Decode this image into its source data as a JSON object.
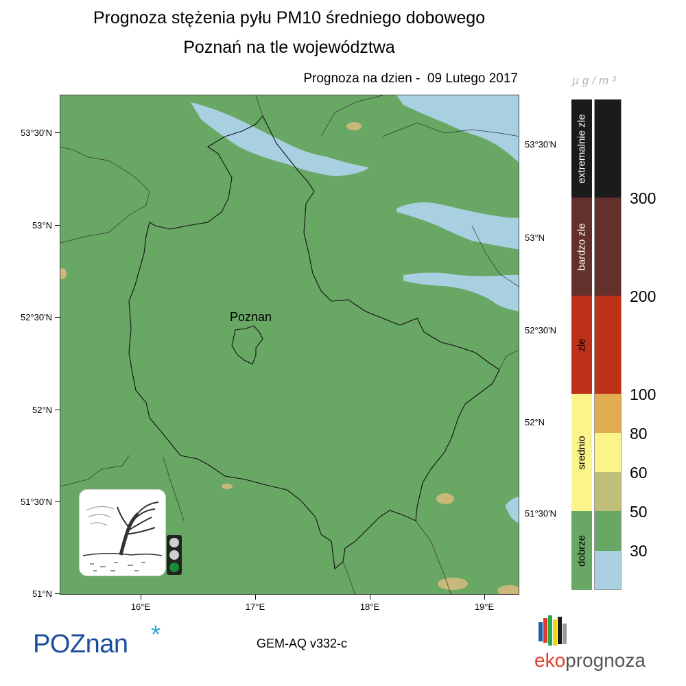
{
  "title": {
    "line1": "Prognoza stężenia pyłu PM10 średniego dobowego",
    "line2": "Poznań na tle województwa"
  },
  "forecast_date": "Prognoza na dzien -  09 Lutego 2017",
  "units": "µg/m³",
  "map": {
    "city_label": "Poznan",
    "background_color": "#69a765",
    "clean_color": "#a8d0e0",
    "moderate_color": "#c8b87a",
    "lat_labels_left": [
      "53°30'N",
      "53°N",
      "52°30'N",
      "52°N",
      "51°30'N",
      "51°N"
    ],
    "lat_labels_right": [
      "53°30'N",
      "53°N",
      "52°30'N",
      "52°N",
      "51°30'N"
    ],
    "lon_labels": [
      "16°E",
      "17°E",
      "18°E",
      "19°E"
    ]
  },
  "legend": {
    "categories": [
      {
        "label": "extremalnie zle",
        "color": "#1b1b1b",
        "text_color": "#ffffff"
      },
      {
        "label": "bardzo zle",
        "color": "#63302c",
        "text_color": "#ffffff"
      },
      {
        "label": "zle",
        "color": "#be3119",
        "text_color": "#000000"
      },
      {
        "label": "srednio",
        "color": "#fbf48b",
        "text_color": "#000000"
      },
      {
        "label": "dobrze",
        "color": "#69a765",
        "text_color": "#000000"
      }
    ],
    "value_colors": [
      "#1b1b1b",
      "#63302c",
      "#be3119",
      "#e1ad50",
      "#fbf48b",
      "#bfbf7a",
      "#69a765",
      "#a8d0e0"
    ],
    "value_labels": [
      "300",
      "200",
      "100",
      "80",
      "60",
      "50",
      "30"
    ]
  },
  "widget": {
    "traffic_light": [
      "off",
      "off",
      "green"
    ],
    "icon": "windy-tree-icon"
  },
  "footer": {
    "city_logo": "POZnan",
    "city_logo_star": "*",
    "model": "GEM-AQ v332-c",
    "brand_prefix": "eko",
    "brand_suffix": "prognoza"
  }
}
